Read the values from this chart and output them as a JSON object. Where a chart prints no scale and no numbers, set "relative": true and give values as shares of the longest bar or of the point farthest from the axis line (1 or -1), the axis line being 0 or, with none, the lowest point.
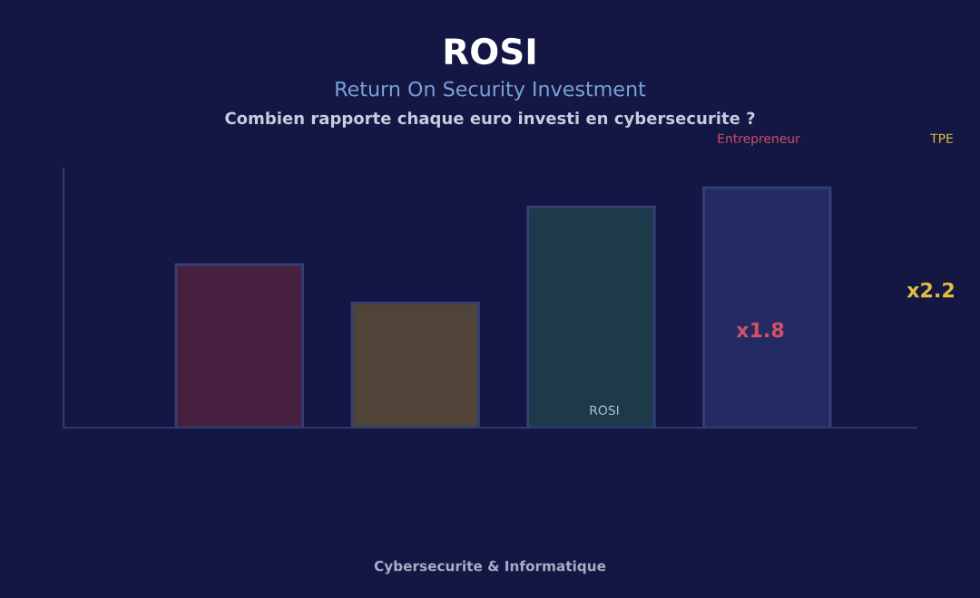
{
  "chart_data": {
    "type": "bar",
    "title": "ROSI",
    "subtitle": "Return On Security Investment\nCombien rapporte chaque euro investi en cybersecurite ?",
    "categories": [
      null,
      null,
      null,
      null
    ],
    "relative": true,
    "colors": [
      "#47203f",
      "#4f4437",
      "#1c3a4a",
      "#242b62"
    ],
    "values": [
      0.68,
      0.52,
      0.92,
      1
    ],
    "annotations": [
      "Entrepreneur",
      "TPE",
      "x1.8",
      "x2.2",
      "ROSI",
      "Cybersecurite & Informatique"
    ],
    "grid": false,
    "legend": false
  }
}
